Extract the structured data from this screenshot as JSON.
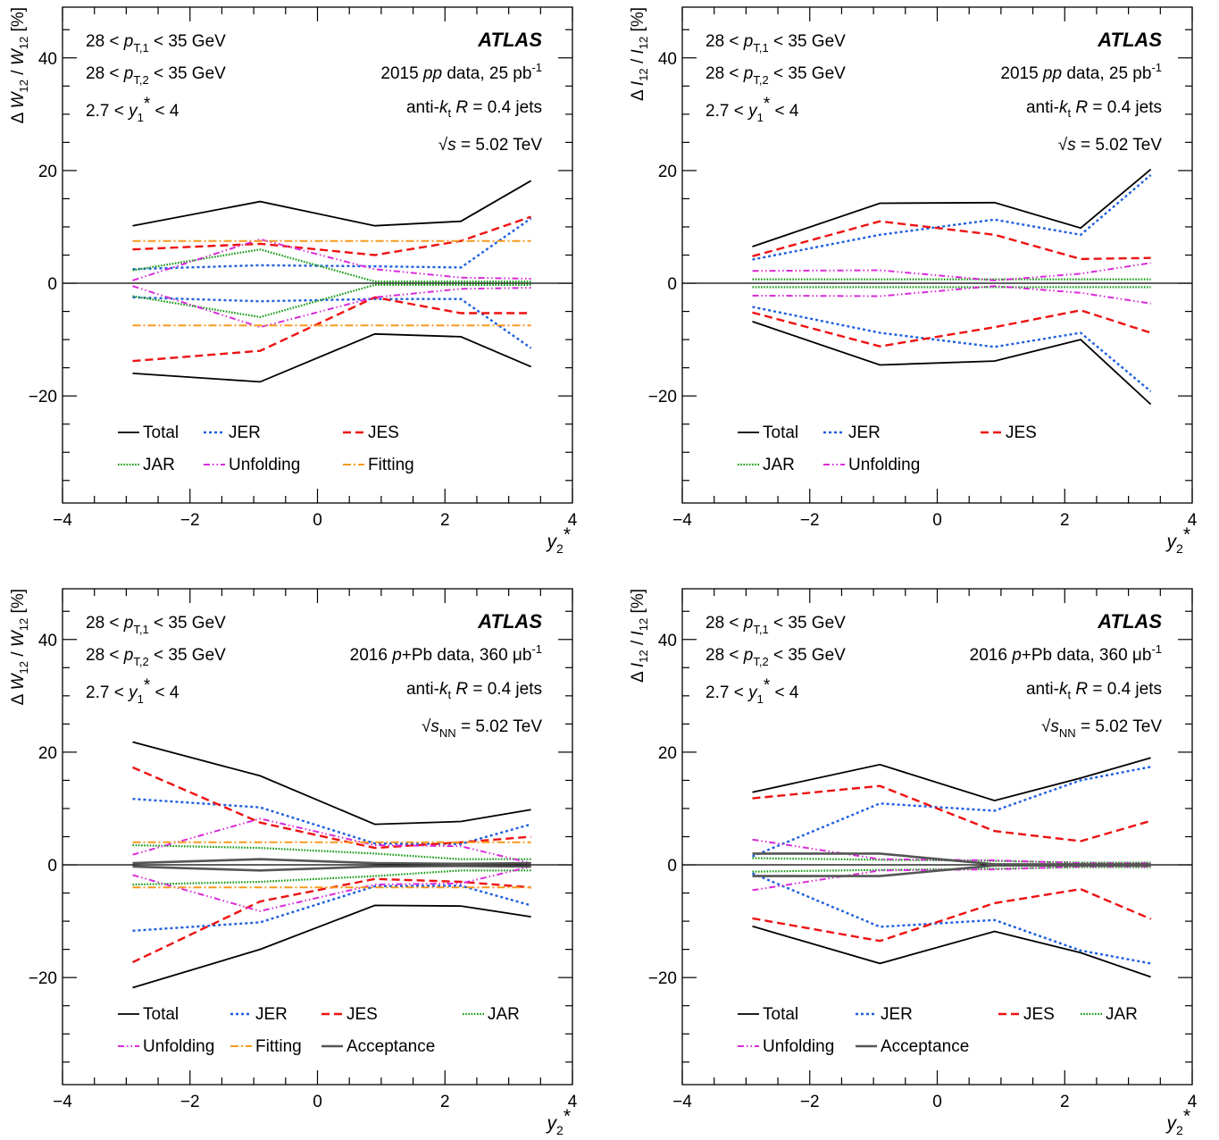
{
  "chart_data": [
    {
      "type": "line",
      "ylabel_parts": {
        "a": "Δ ",
        "b": "W",
        "c": "12",
        "d": " / ",
        "e": "W",
        "f": "12",
        "g": " [%]"
      },
      "xlabel": "y2*",
      "xlim": [
        -4,
        4
      ],
      "ylim": [
        -39,
        49
      ],
      "x_ticks": [
        "−4",
        "−2",
        "0",
        "2",
        "4"
      ],
      "y_ticks": [
        "−20",
        "0",
        "20",
        "40"
      ],
      "cuts": [
        "28 < pT,1 < 35 GeV",
        "28 < pT,2 < 35 GeV",
        "2.7 < y1* < 4"
      ],
      "atlas": "ATLAS",
      "dataset": "2015 pp data, 25 pb-1",
      "jets": "anti-kt R = 0.4 jets",
      "energy": "√s = 5.02 TeV",
      "legend": [
        "Total",
        "JER",
        "JES",
        "JAR",
        "Unfolding",
        "Fitting"
      ],
      "x": [
        -2.9,
        -0.9,
        0.9,
        2.25,
        3.35
      ],
      "series": [
        {
          "name": "Total",
          "upper": [
            10.2,
            14.5,
            10.2,
            11.0,
            18.2
          ],
          "lower": [
            -16.0,
            -17.5,
            -9.0,
            -9.5,
            -14.8
          ]
        },
        {
          "name": "JER",
          "upper": [
            2.5,
            3.2,
            3.0,
            2.8,
            11.5
          ],
          "lower": [
            -2.5,
            -3.2,
            -2.8,
            -2.8,
            -11.5
          ]
        },
        {
          "name": "JES",
          "upper": [
            6.0,
            7.0,
            5.0,
            7.5,
            11.8
          ],
          "lower": [
            -13.8,
            -12.0,
            -2.5,
            -5.3,
            -5.3
          ]
        },
        {
          "name": "JAR",
          "upper": [
            2.3,
            6.0,
            0.3,
            0.3,
            0.3
          ],
          "lower": [
            -2.3,
            -6.0,
            -0.3,
            -0.3,
            -0.3
          ]
        },
        {
          "name": "Unfolding",
          "upper": [
            0.5,
            7.8,
            2.5,
            1.0,
            0.8
          ],
          "lower": [
            -0.5,
            -7.8,
            -2.5,
            -1.0,
            -0.8
          ]
        },
        {
          "name": "Fitting",
          "upper": [
            7.5,
            7.5,
            7.5,
            7.5,
            7.5
          ],
          "lower": [
            -7.5,
            -7.5,
            -7.5,
            -7.5,
            -7.5
          ]
        }
      ]
    },
    {
      "type": "line",
      "ylabel_parts": {
        "a": "Δ ",
        "b": "I",
        "c": "12",
        "d": " / ",
        "e": "I",
        "f": "12",
        "g": " [%]"
      },
      "xlabel": "y2*",
      "xlim": [
        -4,
        4
      ],
      "ylim": [
        -39,
        49
      ],
      "x_ticks": [
        "−4",
        "−2",
        "0",
        "2",
        "4"
      ],
      "y_ticks": [
        "−20",
        "0",
        "20",
        "40"
      ],
      "cuts": [
        "28 < pT,1 < 35 GeV",
        "28 < pT,2 < 35 GeV",
        "2.7 < y1* < 4"
      ],
      "atlas": "ATLAS",
      "dataset": "2015 pp data, 25 pb-1",
      "jets": "anti-kt R = 0.4 jets",
      "energy": "√s = 5.02 TeV",
      "legend": [
        "Total",
        "JER",
        "JES",
        "JAR",
        "Unfolding"
      ],
      "x": [
        -2.9,
        -0.9,
        0.9,
        2.25,
        3.35
      ],
      "series": [
        {
          "name": "Total",
          "upper": [
            6.5,
            14.2,
            14.3,
            9.8,
            20.2
          ],
          "lower": [
            -6.8,
            -14.5,
            -13.8,
            -10.0,
            -21.5
          ]
        },
        {
          "name": "JER",
          "upper": [
            4.2,
            8.6,
            11.3,
            8.6,
            19.2
          ],
          "lower": [
            -4.2,
            -8.8,
            -11.3,
            -8.8,
            -19.2
          ]
        },
        {
          "name": "JES",
          "upper": [
            4.8,
            11.0,
            8.6,
            4.3,
            4.5
          ],
          "lower": [
            -5.2,
            -11.2,
            -7.8,
            -4.8,
            -8.8
          ]
        },
        {
          "name": "JAR",
          "upper": [
            0.7,
            0.7,
            0.7,
            0.7,
            0.7
          ],
          "lower": [
            -0.7,
            -0.7,
            -0.7,
            -0.7,
            -0.7
          ]
        },
        {
          "name": "Unfolding",
          "upper": [
            2.2,
            2.3,
            0.5,
            1.7,
            3.6
          ],
          "lower": [
            -2.2,
            -2.3,
            -0.5,
            -1.7,
            -3.6
          ]
        }
      ]
    },
    {
      "type": "line",
      "ylabel_parts": {
        "a": "Δ ",
        "b": "W",
        "c": "12",
        "d": " / ",
        "e": "W",
        "f": "12",
        "g": " [%]"
      },
      "xlabel": "y2*",
      "xlim": [
        -4,
        4
      ],
      "ylim": [
        -39,
        49
      ],
      "x_ticks": [
        "−4",
        "−2",
        "0",
        "2",
        "4"
      ],
      "y_ticks": [
        "−20",
        "0",
        "20",
        "40"
      ],
      "cuts": [
        "28 < pT,1 < 35 GeV",
        "28 < pT,2 < 35 GeV",
        "2.7 < y1* < 4"
      ],
      "atlas": "ATLAS",
      "dataset": "2016 p+Pb data, 360 μb-1",
      "jets": "anti-kt R = 0.4 jets",
      "energy": "√sNN = 5.02 TeV",
      "legend": [
        "Total",
        "JER",
        "JES",
        "JAR",
        "Unfolding",
        "Fitting",
        "Acceptance"
      ],
      "x": [
        -2.9,
        -0.9,
        0.9,
        2.25,
        3.35
      ],
      "series": [
        {
          "name": "Total",
          "upper": [
            21.8,
            15.8,
            7.2,
            7.7,
            9.8
          ],
          "lower": [
            -21.8,
            -15.0,
            -7.2,
            -7.3,
            -9.2
          ]
        },
        {
          "name": "JER",
          "upper": [
            11.7,
            10.2,
            3.8,
            3.7,
            7.2
          ],
          "lower": [
            -11.7,
            -10.2,
            -3.8,
            -3.7,
            -7.2
          ]
        },
        {
          "name": "JES",
          "upper": [
            17.3,
            7.5,
            3.0,
            4.0,
            5.0
          ],
          "lower": [
            -17.3,
            -6.5,
            -2.5,
            -3.0,
            -4.0
          ]
        },
        {
          "name": "JAR",
          "upper": [
            3.5,
            3.0,
            2.0,
            1.0,
            1.0
          ],
          "lower": [
            -3.5,
            -3.0,
            -2.0,
            -1.0,
            -1.0
          ]
        },
        {
          "name": "Unfolding",
          "upper": [
            1.8,
            8.2,
            3.5,
            3.3,
            0.3
          ],
          "lower": [
            -1.8,
            -8.2,
            -3.5,
            -3.3,
            -0.3
          ]
        },
        {
          "name": "Fitting",
          "upper": [
            4.0,
            4.0,
            4.0,
            4.0,
            4.0
          ],
          "lower": [
            -4.0,
            -4.0,
            -4.0,
            -4.0,
            -4.0
          ]
        },
        {
          "name": "Acceptance",
          "upper": [
            0.3,
            1.0,
            0.3,
            0.2,
            0.3
          ],
          "lower": [
            -0.3,
            -1.0,
            -0.3,
            -0.2,
            -0.3
          ]
        }
      ]
    },
    {
      "type": "line",
      "ylabel_parts": {
        "a": "Δ ",
        "b": "I",
        "c": "12",
        "d": " / ",
        "e": "I",
        "f": "12",
        "g": " [%]"
      },
      "xlabel": "y2*",
      "xlim": [
        -4,
        4
      ],
      "ylim": [
        -39,
        49
      ],
      "x_ticks": [
        "−4",
        "−2",
        "0",
        "2",
        "4"
      ],
      "y_ticks": [
        "−20",
        "0",
        "20",
        "40"
      ],
      "cuts": [
        "28 < pT,1 < 35 GeV",
        "28 < pT,2 < 35 GeV",
        "2.7 < y1* < 4"
      ],
      "atlas": "ATLAS",
      "dataset": "2016 p+Pb data, 360 μb-1",
      "jets": "anti-kt R = 0.4 jets",
      "energy": "√sNN = 5.02 TeV",
      "legend": [
        "Total",
        "JER",
        "JES",
        "JAR",
        "Unfolding",
        "Acceptance"
      ],
      "x": [
        -2.9,
        -0.9,
        0.9,
        2.25,
        3.35
      ],
      "series": [
        {
          "name": "Total",
          "upper": [
            12.9,
            17.8,
            11.4,
            15.4,
            19.0
          ],
          "lower": [
            -10.9,
            -17.5,
            -11.8,
            -15.6,
            -19.9
          ]
        },
        {
          "name": "JER",
          "upper": [
            1.5,
            10.9,
            9.6,
            15.0,
            17.4
          ],
          "lower": [
            -1.5,
            -11.0,
            -9.8,
            -15.2,
            -17.5
          ]
        },
        {
          "name": "JES",
          "upper": [
            11.8,
            14.0,
            6.0,
            4.2,
            7.8
          ],
          "lower": [
            -9.5,
            -13.5,
            -6.8,
            -4.3,
            -9.6
          ]
        },
        {
          "name": "JAR",
          "upper": [
            1.2,
            0.9,
            0.7,
            0.4,
            0.4
          ],
          "lower": [
            -1.2,
            -0.9,
            -0.7,
            -0.4,
            -0.4
          ]
        },
        {
          "name": "Unfolding",
          "upper": [
            4.5,
            1.0,
            0.8,
            0.3,
            0.3
          ],
          "lower": [
            -4.5,
            -1.0,
            -0.8,
            -0.3,
            -0.3
          ]
        },
        {
          "name": "Acceptance",
          "upper": [
            2.0,
            2.0,
            0.1,
            0.1,
            0.1
          ],
          "lower": [
            -2.0,
            -2.0,
            -0.1,
            -0.1,
            -0.1
          ]
        }
      ]
    }
  ],
  "styles": {
    "Total": {
      "color": "#000000",
      "dash": "",
      "width": 1.8
    },
    "JER": {
      "color": "#1f5fe0",
      "dash": "3,3",
      "width": 2.4
    },
    "JES": {
      "color": "#ee1111",
      "dash": "9,5",
      "width": 2.4
    },
    "JAR": {
      "color": "#139a13",
      "dash": "1.6,1.6",
      "width": 2.2
    },
    "Unfolding": {
      "color": "#d92bd9",
      "dash": "7,3,1.5,3,1.5,3",
      "width": 2.0
    },
    "Fitting": {
      "color": "#f59a1e",
      "dash": "9,3,2,3",
      "width": 2.0
    },
    "Acceptance": {
      "color": "#555555",
      "dash": "",
      "width": 2.6
    }
  }
}
